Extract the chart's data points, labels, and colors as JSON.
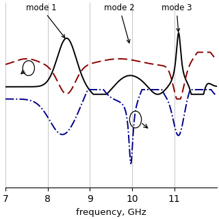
{
  "xlabel": "frequency, GHz",
  "xlim": [
    7,
    12
  ],
  "xticks": [
    7,
    8,
    9,
    10,
    11
  ],
  "background_color": "#ffffff",
  "grid_color": "#bbbbbb"
}
